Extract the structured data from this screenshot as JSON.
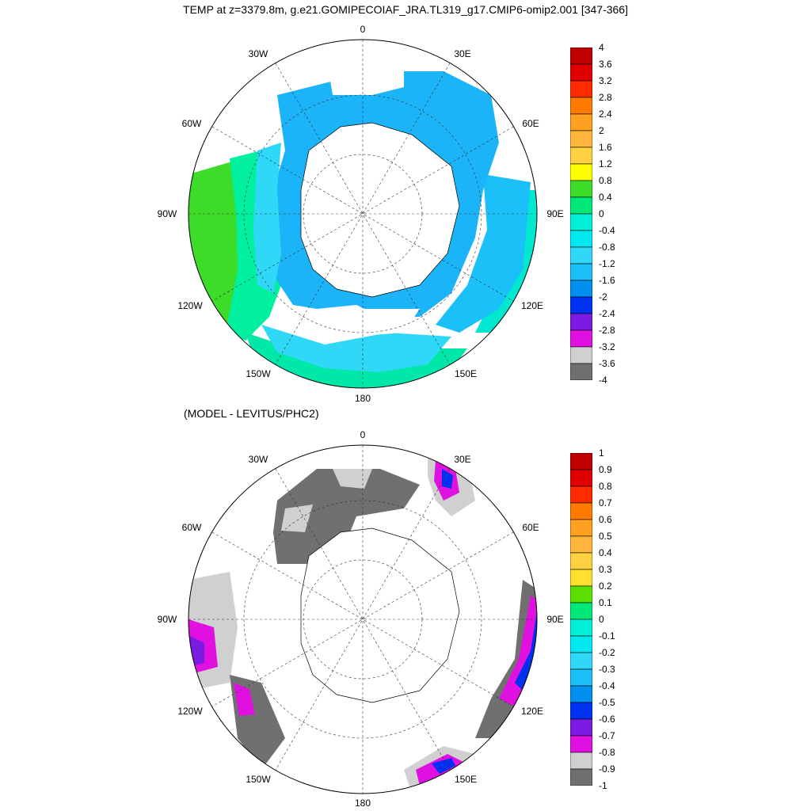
{
  "title": "TEMP at z=3379.8m, g.e21.GOMIPECOIAF_JRA.TL319_g17.CMIP6-omip2.001 [347-366]",
  "diff_title": "(MODEL - LEVITUS/PHC2)",
  "lon_labels": [
    "0",
    "30E",
    "60E",
    "90E",
    "120E",
    "150E",
    "180",
    "150W",
    "120W",
    "90W",
    "60W",
    "30W"
  ],
  "top_colorbar": {
    "labels": [
      "4",
      "3.6",
      "3.2",
      "2.8",
      "2.4",
      "2",
      "1.6",
      "1.2",
      "0.8",
      "0.4",
      "0",
      "-0.4",
      "-0.8",
      "-1.2",
      "-1.6",
      "-2",
      "-2.4",
      "-2.8",
      "-3.2",
      "-3.6",
      "-4"
    ],
    "colors": [
      "#c00000",
      "#e00000",
      "#ff2a00",
      "#ff7a00",
      "#ffa020",
      "#ffb43c",
      "#ffd040",
      "#ffff00",
      "#3cdc28",
      "#00e878",
      "#00f0d8",
      "#00e8f0",
      "#30d8f8",
      "#1cc0f8",
      "#0090f0",
      "#0030f0",
      "#7b1ae0",
      "#e010e0",
      "#d0d0d0",
      "#707070"
    ]
  },
  "diff_colorbar": {
    "labels": [
      "1",
      "0.9",
      "0.8",
      "0.7",
      "0.6",
      "0.5",
      "0.4",
      "0.3",
      "0.2",
      "0.1",
      "0",
      "-0.1",
      "-0.2",
      "-0.3",
      "-0.4",
      "-0.5",
      "-0.6",
      "-0.7",
      "-0.8",
      "-0.9",
      "-1"
    ],
    "colors": [
      "#c00000",
      "#e00000",
      "#ff2a00",
      "#ff7a00",
      "#ffa020",
      "#ffb43c",
      "#ffd040",
      "#ffe030",
      "#5ae000",
      "#00e878",
      "#00f0d8",
      "#00e8f0",
      "#30d8f8",
      "#1cc0f8",
      "#0090f0",
      "#0030f0",
      "#7b1ae0",
      "#e010e0",
      "#d0d0d0",
      "#707070"
    ]
  }
}
